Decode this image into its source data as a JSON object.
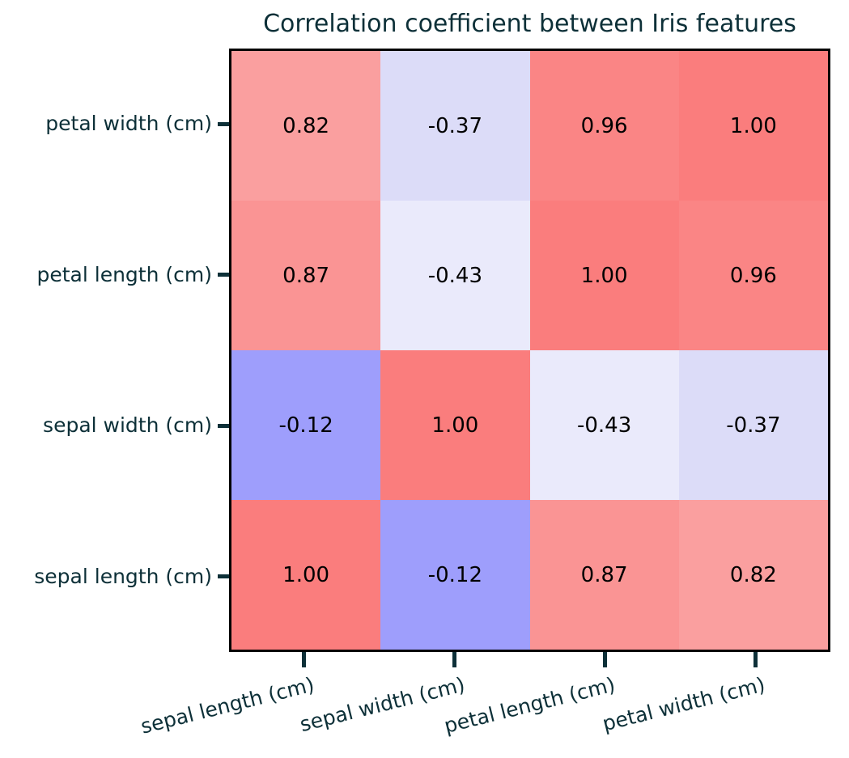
{
  "title": "Correlation coefficient between Iris features",
  "colors": {
    "label_text": "#0d3038",
    "value_text": "#000000",
    "spine": "#000000",
    "background": "#ffffff",
    "tick": "#0d3038"
  },
  "chart_data": {
    "type": "heatmap",
    "title": "Correlation coefficient between Iris features",
    "x_categories": [
      "sepal length (cm)",
      "sepal width (cm)",
      "petal length (cm)",
      "petal width (cm)"
    ],
    "y_categories_top_to_bottom": [
      "petal width (cm)",
      "petal length (cm)",
      "sepal width (cm)",
      "sepal length (cm)"
    ],
    "matrix": [
      [
        0.82,
        -0.37,
        0.96,
        1.0
      ],
      [
        0.87,
        -0.43,
        1.0,
        0.96
      ],
      [
        -0.12,
        1.0,
        -0.43,
        -0.37
      ],
      [
        1.0,
        -0.12,
        0.87,
        0.82
      ]
    ],
    "value_labels": [
      [
        "0.82",
        "-0.37",
        "0.96",
        "1.00"
      ],
      [
        "0.87",
        "-0.43",
        "1.00",
        "0.96"
      ],
      [
        "-0.12",
        "1.00",
        "-0.43",
        "-0.37"
      ],
      [
        "1.00",
        "-0.12",
        "0.87",
        "0.82"
      ]
    ],
    "cell_colors": [
      [
        "#fa9f9f",
        "#dcdcf8",
        "#fa8585",
        "#fa7d7d"
      ],
      [
        "#fa9494",
        "#eaeafb",
        "#fa7d7d",
        "#fa8585"
      ],
      [
        "#9e9efc",
        "#fa7d7d",
        "#eaeafb",
        "#dcdcf8"
      ],
      [
        "#fa7d7d",
        "#9e9efc",
        "#fa9494",
        "#fa9f9f"
      ]
    ],
    "colormap": "blue-white-red diverging",
    "grid": false,
    "legend": false,
    "x_tick_rotation_deg": 14
  }
}
